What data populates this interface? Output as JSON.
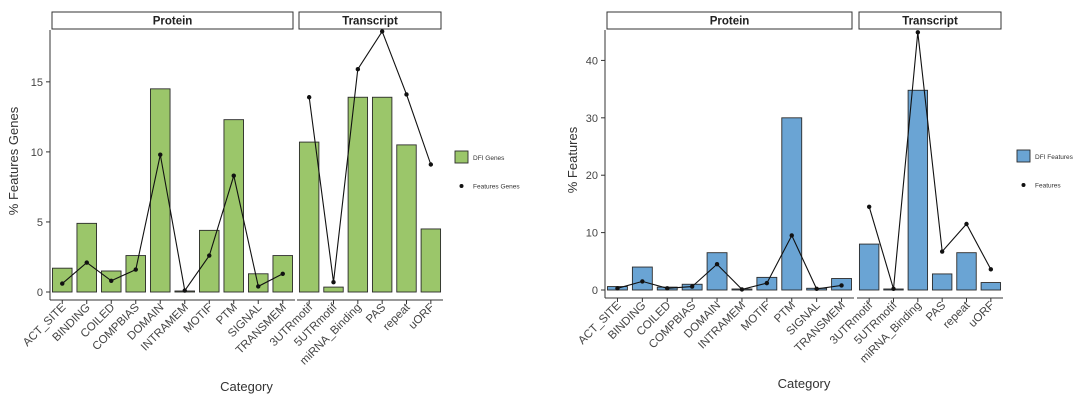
{
  "chart_data": [
    {
      "type": "bar",
      "facets": [
        {
          "title": "Protein",
          "categories": [
            "ACT_SITE",
            "BINDING",
            "COILED",
            "COMPBIAS",
            "DOMAIN",
            "INTRAMEM",
            "MOTIF",
            "PTM",
            "SIGNAL",
            "TRANSMEM"
          ]
        },
        {
          "title": "Transcript",
          "categories": [
            "3UTRmotif",
            "5UTRmotif",
            "miRNA_Binding",
            "PAS",
            "repeat",
            "uORF"
          ]
        }
      ],
      "xlabel": "Category",
      "ylabel": "% Features Genes",
      "yticks": [
        0,
        5,
        10,
        15
      ],
      "ylim": [
        0,
        18.7
      ],
      "bar_color": "#9bc66a",
      "series": [
        {
          "name": "DFI Genes",
          "kind": "bar",
          "values": [
            1.7,
            4.9,
            1.5,
            2.6,
            14.5,
            0.05,
            4.4,
            12.3,
            1.3,
            2.6,
            10.7,
            0.35,
            13.9,
            13.9,
            10.5,
            4.5
          ]
        },
        {
          "name": "Features Genes",
          "kind": "line",
          "values": [
            0.6,
            2.1,
            0.8,
            1.6,
            9.8,
            0.1,
            2.6,
            8.3,
            0.4,
            1.3,
            13.9,
            0.7,
            15.9,
            18.6,
            14.1,
            9.1
          ]
        }
      ],
      "legend": {
        "placement": "right",
        "entries": [
          "DFI Genes",
          "Features Genes"
        ]
      },
      "grid": false
    },
    {
      "type": "bar",
      "facets": [
        {
          "title": "Protein",
          "categories": [
            "ACT_SITE",
            "BINDING",
            "COILED",
            "COMPBIAS",
            "DOMAIN",
            "INTRAMEM",
            "MOTIF",
            "PTM",
            "SIGNAL",
            "TRANSMEM"
          ]
        },
        {
          "title": "Transcript",
          "categories": [
            "3UTRmotif",
            "5UTRmotif",
            "miRNA_Binding",
            "PAS",
            "repeat",
            "uORF"
          ]
        }
      ],
      "xlabel": "Category",
      "ylabel": "% Features",
      "yticks": [
        0,
        10,
        20,
        30,
        40
      ],
      "ylim": [
        0,
        45.3
      ],
      "bar_color": "#6aa4d4",
      "series": [
        {
          "name": "DFI Features",
          "kind": "bar",
          "values": [
            0.6,
            4.0,
            0.5,
            1.0,
            6.5,
            0.1,
            2.2,
            30.0,
            0.3,
            2.0,
            8.0,
            0.1,
            34.8,
            2.8,
            6.5,
            1.3
          ]
        },
        {
          "name": "Features",
          "kind": "line",
          "values": [
            0.3,
            1.5,
            0.3,
            0.6,
            4.5,
            0.1,
            1.2,
            9.5,
            0.2,
            0.8,
            14.5,
            0.2,
            44.9,
            6.7,
            11.5,
            3.6
          ]
        }
      ],
      "legend": {
        "placement": "right",
        "entries": [
          "DFI Features",
          "Features"
        ]
      },
      "grid": false
    }
  ]
}
